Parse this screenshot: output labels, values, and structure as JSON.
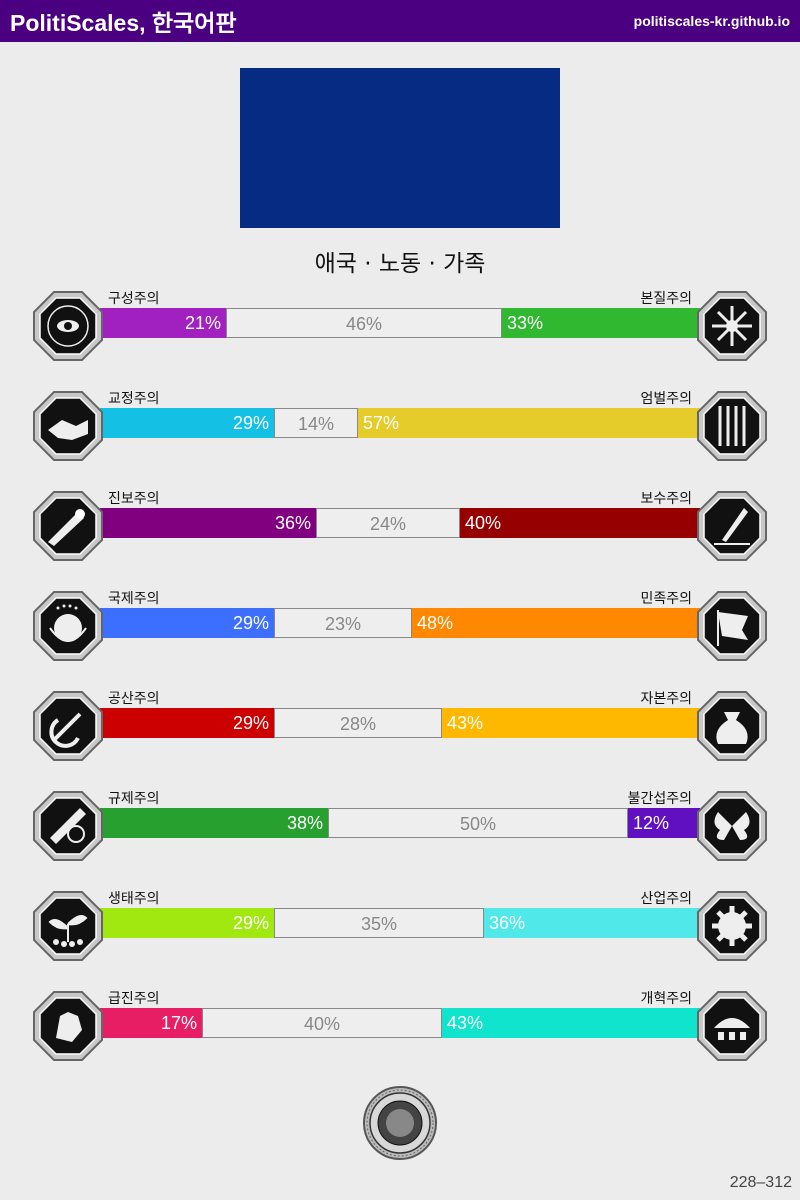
{
  "header": {
    "title": "PolitiScales, 한국어판",
    "url": "politiscales-kr.github.io"
  },
  "flag": {
    "color": "#052b82"
  },
  "ideology": "애국 · 노동 · 가족",
  "axes": [
    {
      "left_label": "구성주의",
      "right_label": "본질주의",
      "left_value": 21,
      "center_value": 46,
      "right_value": 33,
      "left_text": "21%",
      "center_text": "46%",
      "right_text": "33%",
      "left_color": "#a020c0",
      "right_color": "#30b830",
      "left_icon": "eye-globe-icon",
      "right_icon": "dna-flower-icon"
    },
    {
      "left_label": "교정주의",
      "right_label": "엄벌주의",
      "left_value": 29,
      "center_value": 14,
      "right_value": 57,
      "left_text": "29%",
      "center_text": "14%",
      "right_text": "57%",
      "left_color": "#14c0e4",
      "right_color": "#e6cc2a",
      "left_icon": "handshake-icon",
      "right_icon": "prison-bars-icon"
    },
    {
      "left_label": "진보주의",
      "right_label": "보수주의",
      "left_value": 36,
      "center_value": 24,
      "right_value": 40,
      "left_text": "36%",
      "center_text": "24%",
      "right_text": "40%",
      "left_color": "#800080",
      "right_color": "#960000",
      "left_icon": "comet-icon",
      "right_icon": "quill-pen-icon"
    },
    {
      "left_label": "국제주의",
      "right_label": "민족주의",
      "left_value": 29,
      "center_value": 23,
      "right_value": 48,
      "left_text": "29%",
      "center_text": "23%",
      "right_text": "48%",
      "left_color": "#3c6eff",
      "right_color": "#ff8800",
      "left_icon": "un-globe-icon",
      "right_icon": "flag-icon"
    },
    {
      "left_label": "공산주의",
      "right_label": "자본주의",
      "left_value": 29,
      "center_value": 28,
      "right_value": 43,
      "left_text": "29%",
      "center_text": "28%",
      "right_text": "43%",
      "left_color": "#cc0000",
      "right_color": "#ffb800",
      "left_icon": "hammer-sickle-icon",
      "right_icon": "money-bag-icon"
    },
    {
      "left_label": "규제주의",
      "right_label": "불간섭주의",
      "left_value": 38,
      "center_value": 50,
      "right_value": 12,
      "left_text": "38%",
      "center_text": "50%",
      "right_text": "12%",
      "left_color": "#28a030",
      "right_color": "#6010c0",
      "left_icon": "ruler-icon",
      "right_icon": "butterfly-icon"
    },
    {
      "left_label": "생태주의",
      "right_label": "산업주의",
      "left_value": 29,
      "center_value": 35,
      "right_value": 36,
      "left_text": "29%",
      "center_text": "35%",
      "right_text": "36%",
      "left_color": "#a0e810",
      "right_color": "#50e8e8",
      "left_icon": "sprout-icon",
      "right_icon": "gear-icon"
    },
    {
      "left_label": "급진주의",
      "right_label": "개혁주의",
      "left_value": 17,
      "center_value": 40,
      "right_value": 43,
      "left_text": "17%",
      "center_text": "40%",
      "right_text": "43%",
      "left_color": "#e81e64",
      "right_color": "#10e4cc",
      "left_icon": "fist-icon",
      "right_icon": "parliament-icon"
    }
  ],
  "seal_icon": "seal-icon",
  "footer_code": "228–312"
}
